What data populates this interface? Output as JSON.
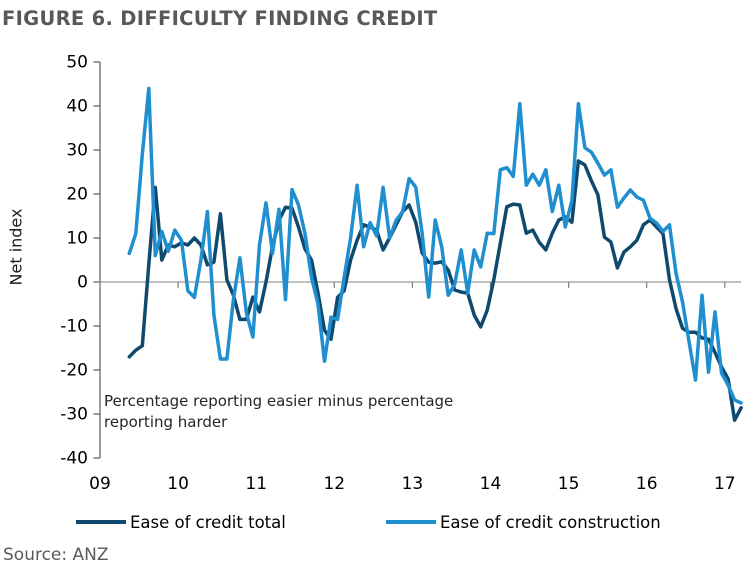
{
  "title": "FIGURE 6. DIFFICULTY FINDING CREDIT",
  "source": "Source: ANZ",
  "chart_data": {
    "type": "line",
    "title": "FIGURE 6. DIFFICULTY FINDING CREDIT",
    "ylabel": "Net index",
    "ylim": [
      -40,
      50
    ],
    "ytick_step": 10,
    "xtick_labels": [
      "09",
      "10",
      "11",
      "12",
      "13",
      "14",
      "15",
      "16",
      "17"
    ],
    "grid": false,
    "legend_position": "bottom",
    "annotation": "Percentage reporting easier minus percentage\nreporting harder",
    "frequency": "monthly",
    "x_monthly_start": "2009-05",
    "x_monthly_end": "2017-03",
    "axis_color": "#595959",
    "zero_line_color": "#808080",
    "series": [
      {
        "name": "Ease of credit total",
        "color": "#0F4A6E",
        "values": [
          -17,
          -15.5,
          -14.5,
          4,
          21.5,
          5,
          8.4,
          8,
          8.9,
          8.4,
          10,
          8.4,
          3.9,
          4.5,
          15.5,
          0.5,
          -3,
          -8.5,
          -8.5,
          -3.4,
          -6.8,
          0,
          8,
          14,
          17,
          16.8,
          12.5,
          7.5,
          5,
          -2.5,
          -11,
          -13,
          -3.5,
          -2,
          5,
          9.5,
          13,
          12.5,
          11.8,
          7.3,
          10,
          13,
          16,
          17.5,
          13.6,
          6.6,
          4.5,
          4.3,
          4.6,
          2.7,
          -1.8,
          -2.3,
          -2.5,
          -7.5,
          -10.2,
          -6.4,
          0.5,
          8.8,
          17.1,
          17.7,
          17.5,
          11.1,
          11.8,
          9,
          7.3,
          11.1,
          14.1,
          14.8,
          13.6,
          27.5,
          26.6,
          23,
          19.8,
          10.2,
          9.1,
          3.2,
          6.8,
          8,
          9.5,
          13,
          14.1,
          12.5,
          11,
          0.5,
          -6,
          -10.5,
          -11.4,
          -11.4,
          -12.7,
          -13,
          -16,
          -19.3,
          -22,
          -31.4,
          -28.6
        ]
      },
      {
        "name": "Ease of credit construction",
        "color": "#1F8FD0",
        "values": [
          6.5,
          11,
          29,
          44,
          6,
          11.5,
          7,
          11.8,
          9.5,
          -2,
          -3.5,
          5,
          16,
          -7.5,
          -17.5,
          -17.5,
          -4,
          5.5,
          -7,
          -12.5,
          8.5,
          18,
          6.5,
          16.5,
          -4,
          21,
          17.5,
          11,
          1,
          -5,
          -18,
          -8,
          -8.5,
          1,
          10,
          22,
          8,
          13.5,
          10.5,
          21.5,
          10,
          14,
          16,
          23.5,
          21.6,
          11,
          -3.4,
          14.1,
          8,
          -3,
          -0.5,
          7.3,
          -2.5,
          7.3,
          3.4,
          11.1,
          11,
          25.5,
          26,
          24,
          40.5,
          22,
          24.5,
          22,
          25.5,
          16,
          22,
          12.5,
          18.5,
          40.5,
          30.5,
          29.5,
          27,
          24.3,
          25.5,
          17,
          19.1,
          20.9,
          19.3,
          18.6,
          14.5,
          13.4,
          11.5,
          13,
          2,
          -4.5,
          -13.5,
          -22.3,
          -3,
          -20.5,
          -6.8,
          -20.7,
          -23.4,
          -26.8,
          -27.5
        ]
      }
    ]
  }
}
